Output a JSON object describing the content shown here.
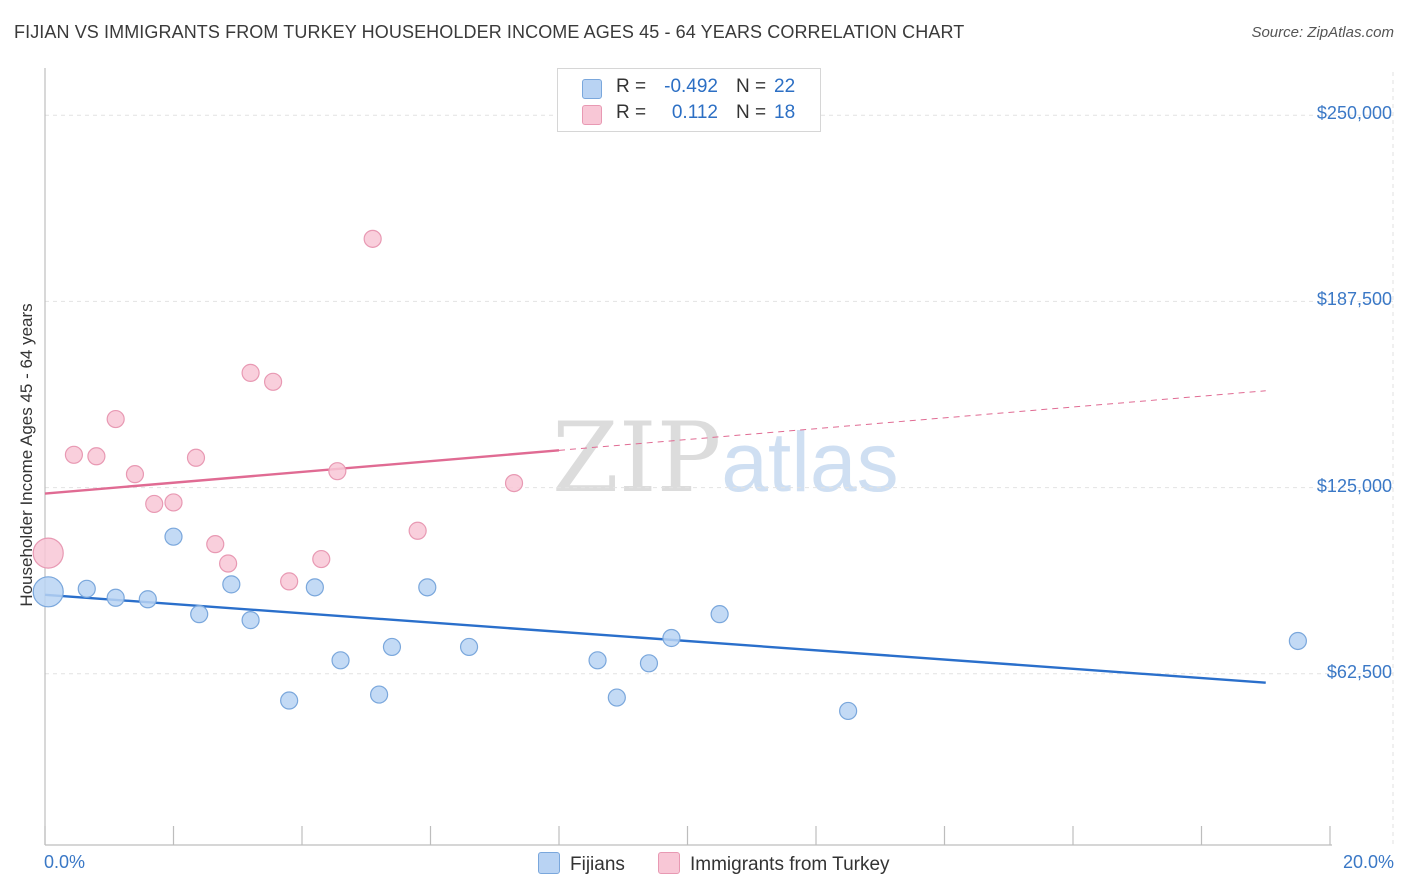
{
  "title": "FIJIAN VS IMMIGRANTS FROM TURKEY HOUSEHOLDER INCOME AGES 45 - 64 YEARS CORRELATION CHART",
  "source": "Source: ZipAtlas.com",
  "watermark": {
    "zip": "ZIP",
    "atlas": "atlas"
  },
  "legend": {
    "rows": [
      {
        "r_label": "R =",
        "r_value": "-0.492",
        "n_label": "N =",
        "n_value": "22"
      },
      {
        "r_label": "R =",
        "r_value": "0.112",
        "n_label": "N =",
        "n_value": "18"
      }
    ]
  },
  "bottom_legend": {
    "series1": "Fijians",
    "series2": "Immigrants from Turkey"
  },
  "colors": {
    "fijians_fill": "#b9d3f3",
    "fijians_stroke": "#7aa7dc",
    "fijians_line": "#2a6fcb",
    "turkey_fill": "#f8c7d6",
    "turkey_stroke": "#e899b3",
    "turkey_line": "#e06b93",
    "tick_label": "#3a78c6",
    "grid": "#e2e2e2"
  },
  "chart_data": {
    "type": "scatter",
    "title": "FIJIAN VS IMMIGRANTS FROM TURKEY HOUSEHOLDER INCOME AGES 45 - 64 YEARS CORRELATION CHART",
    "xlabel": "",
    "ylabel": "Householder Income Ages 45 - 64 years",
    "xlim": [
      0,
      20
    ],
    "ylim": [
      5000,
      262500
    ],
    "y_ticks": [
      62500,
      125000,
      187500,
      250000
    ],
    "y_tick_labels": [
      "$62,500",
      "$125,000",
      "$187,500",
      "$250,000"
    ],
    "x_tick_labels": [
      "0.0%",
      "20.0%"
    ],
    "grid": true,
    "series": [
      {
        "name": "Fijians",
        "R": -0.492,
        "N": 22,
        "trend": {
          "x": [
            0,
            19.0
          ],
          "y": [
            89000,
            59500
          ]
        },
        "points": [
          {
            "x": 0.05,
            "y": 90000,
            "big": true
          },
          {
            "x": 0.65,
            "y": 91000
          },
          {
            "x": 1.1,
            "y": 88000
          },
          {
            "x": 1.6,
            "y": 87500
          },
          {
            "x": 2.0,
            "y": 108500
          },
          {
            "x": 2.4,
            "y": 82500
          },
          {
            "x": 2.9,
            "y": 92500
          },
          {
            "x": 3.2,
            "y": 80500
          },
          {
            "x": 3.8,
            "y": 53500
          },
          {
            "x": 4.2,
            "y": 91500
          },
          {
            "x": 4.6,
            "y": 67000
          },
          {
            "x": 5.2,
            "y": 55500
          },
          {
            "x": 5.4,
            "y": 71500
          },
          {
            "x": 5.95,
            "y": 91500
          },
          {
            "x": 6.6,
            "y": 71500
          },
          {
            "x": 8.6,
            "y": 67000
          },
          {
            "x": 8.9,
            "y": 54500
          },
          {
            "x": 9.4,
            "y": 66000
          },
          {
            "x": 9.75,
            "y": 74500
          },
          {
            "x": 10.5,
            "y": 82500
          },
          {
            "x": 12.5,
            "y": 50000
          },
          {
            "x": 19.5,
            "y": 73500
          }
        ]
      },
      {
        "name": "Immigrants from Turkey",
        "R": 0.112,
        "N": 18,
        "trend": {
          "x": [
            0,
            8.0
          ],
          "y": [
            123000,
            137500
          ]
        },
        "trend_extended": {
          "x": [
            8.0,
            19.0
          ],
          "y": [
            137500,
            157500
          ]
        },
        "points": [
          {
            "x": 0.05,
            "y": 103000,
            "big": true
          },
          {
            "x": 0.45,
            "y": 136000
          },
          {
            "x": 0.8,
            "y": 135500
          },
          {
            "x": 1.1,
            "y": 148000
          },
          {
            "x": 1.4,
            "y": 129500
          },
          {
            "x": 1.7,
            "y": 119500
          },
          {
            "x": 2.0,
            "y": 120000
          },
          {
            "x": 2.35,
            "y": 135000
          },
          {
            "x": 2.65,
            "y": 106000
          },
          {
            "x": 2.85,
            "y": 99500
          },
          {
            "x": 3.2,
            "y": 163500
          },
          {
            "x": 3.55,
            "y": 160500
          },
          {
            "x": 3.8,
            "y": 93500
          },
          {
            "x": 4.3,
            "y": 101000
          },
          {
            "x": 4.55,
            "y": 130500
          },
          {
            "x": 5.1,
            "y": 208500
          },
          {
            "x": 5.8,
            "y": 110500
          },
          {
            "x": 7.3,
            "y": 126500
          }
        ]
      }
    ]
  }
}
